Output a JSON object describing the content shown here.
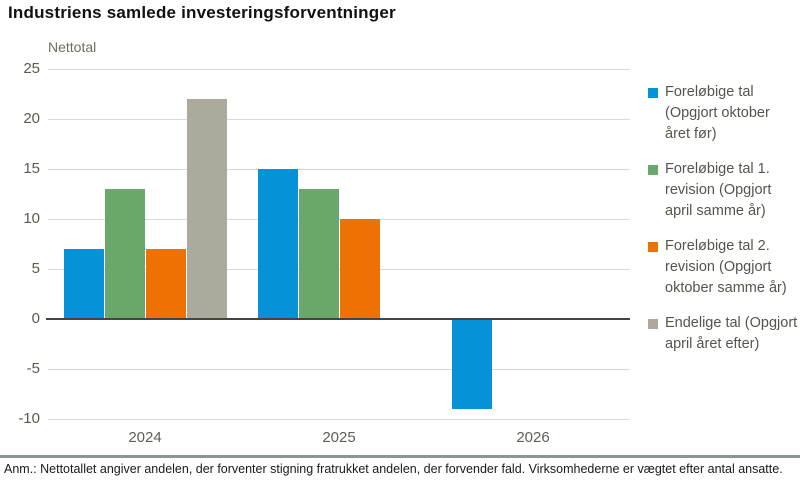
{
  "header": {
    "title": "Industriens samlede investeringsforventninger"
  },
  "footer": {
    "note": "Anm.: Nettotallet angiver andelen, der forventer stigning fratrukket andelen, der forvender fald. Virksomhederne er vægtet efter antal ansatte."
  },
  "chart_data": {
    "type": "bar",
    "title": "Industriens samlede investeringsforventninger",
    "xlabel": "",
    "ylabel": "Nettotal",
    "categories": [
      "2024",
      "2025",
      "2026"
    ],
    "series": [
      {
        "name": "Foreløbige tal (Opgjort oktober året før)",
        "color": "#0791d6",
        "values": [
          7,
          15,
          -9
        ]
      },
      {
        "name": "Foreløbige tal 1. revision (Opgjort april samme år)",
        "color": "#6aa76a",
        "values": [
          13,
          13,
          null
        ]
      },
      {
        "name": "Foreløbige tal 2. revision (Opgjort oktober samme år)",
        "color": "#ee7203",
        "values": [
          7,
          10,
          null
        ]
      },
      {
        "name": "Endelige tal (Opgjort april året efter)",
        "color": "#acaa9c",
        "values": [
          22,
          null,
          null
        ]
      }
    ],
    "ylim": [
      -10,
      25
    ],
    "ytick_step": 5,
    "grid": true,
    "legend_position": "right",
    "gridline_color": "#d9d9d9",
    "zero_line_color": "#444440"
  }
}
